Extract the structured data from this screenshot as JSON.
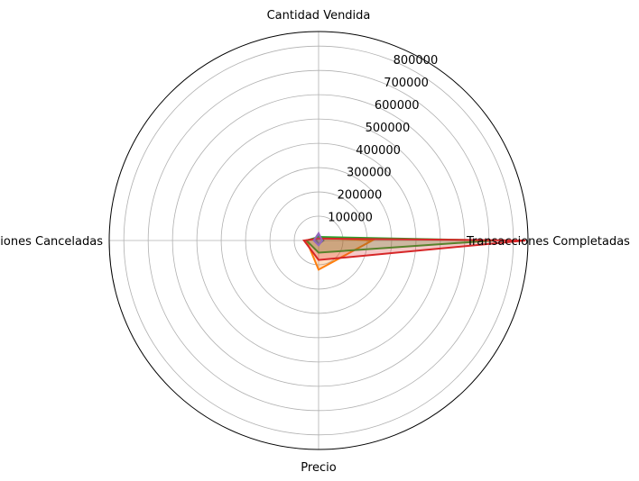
{
  "chart_data": {
    "type": "radar",
    "axes": [
      "Transacciones Completadas",
      "Cantidad Vendida",
      "Transacciones Canceladas",
      "Precio"
    ],
    "radial_ticks": [
      100000,
      200000,
      300000,
      400000,
      500000,
      600000,
      700000,
      800000
    ],
    "radial_tick_labels": [
      "100000",
      "200000",
      "300000",
      "400000",
      "500000",
      "600000",
      "700000",
      "800000"
    ],
    "rlim": [
      0,
      860000
    ],
    "grid": true,
    "series": [
      {
        "color": "#1f77b4",
        "values": [
          20000,
          20000,
          10000,
          15000
        ]
      },
      {
        "color": "#ff7f0e",
        "values": [
          220000,
          12000,
          50000,
          120000
        ]
      },
      {
        "color": "#2ca02c",
        "values": [
          720000,
          15000,
          50000,
          50000
        ]
      },
      {
        "color": "#d62728",
        "values": [
          850000,
          8000,
          60000,
          80000
        ]
      },
      {
        "color": "#9467bd",
        "values": [
          15000,
          30000,
          20000,
          20000
        ]
      }
    ]
  }
}
